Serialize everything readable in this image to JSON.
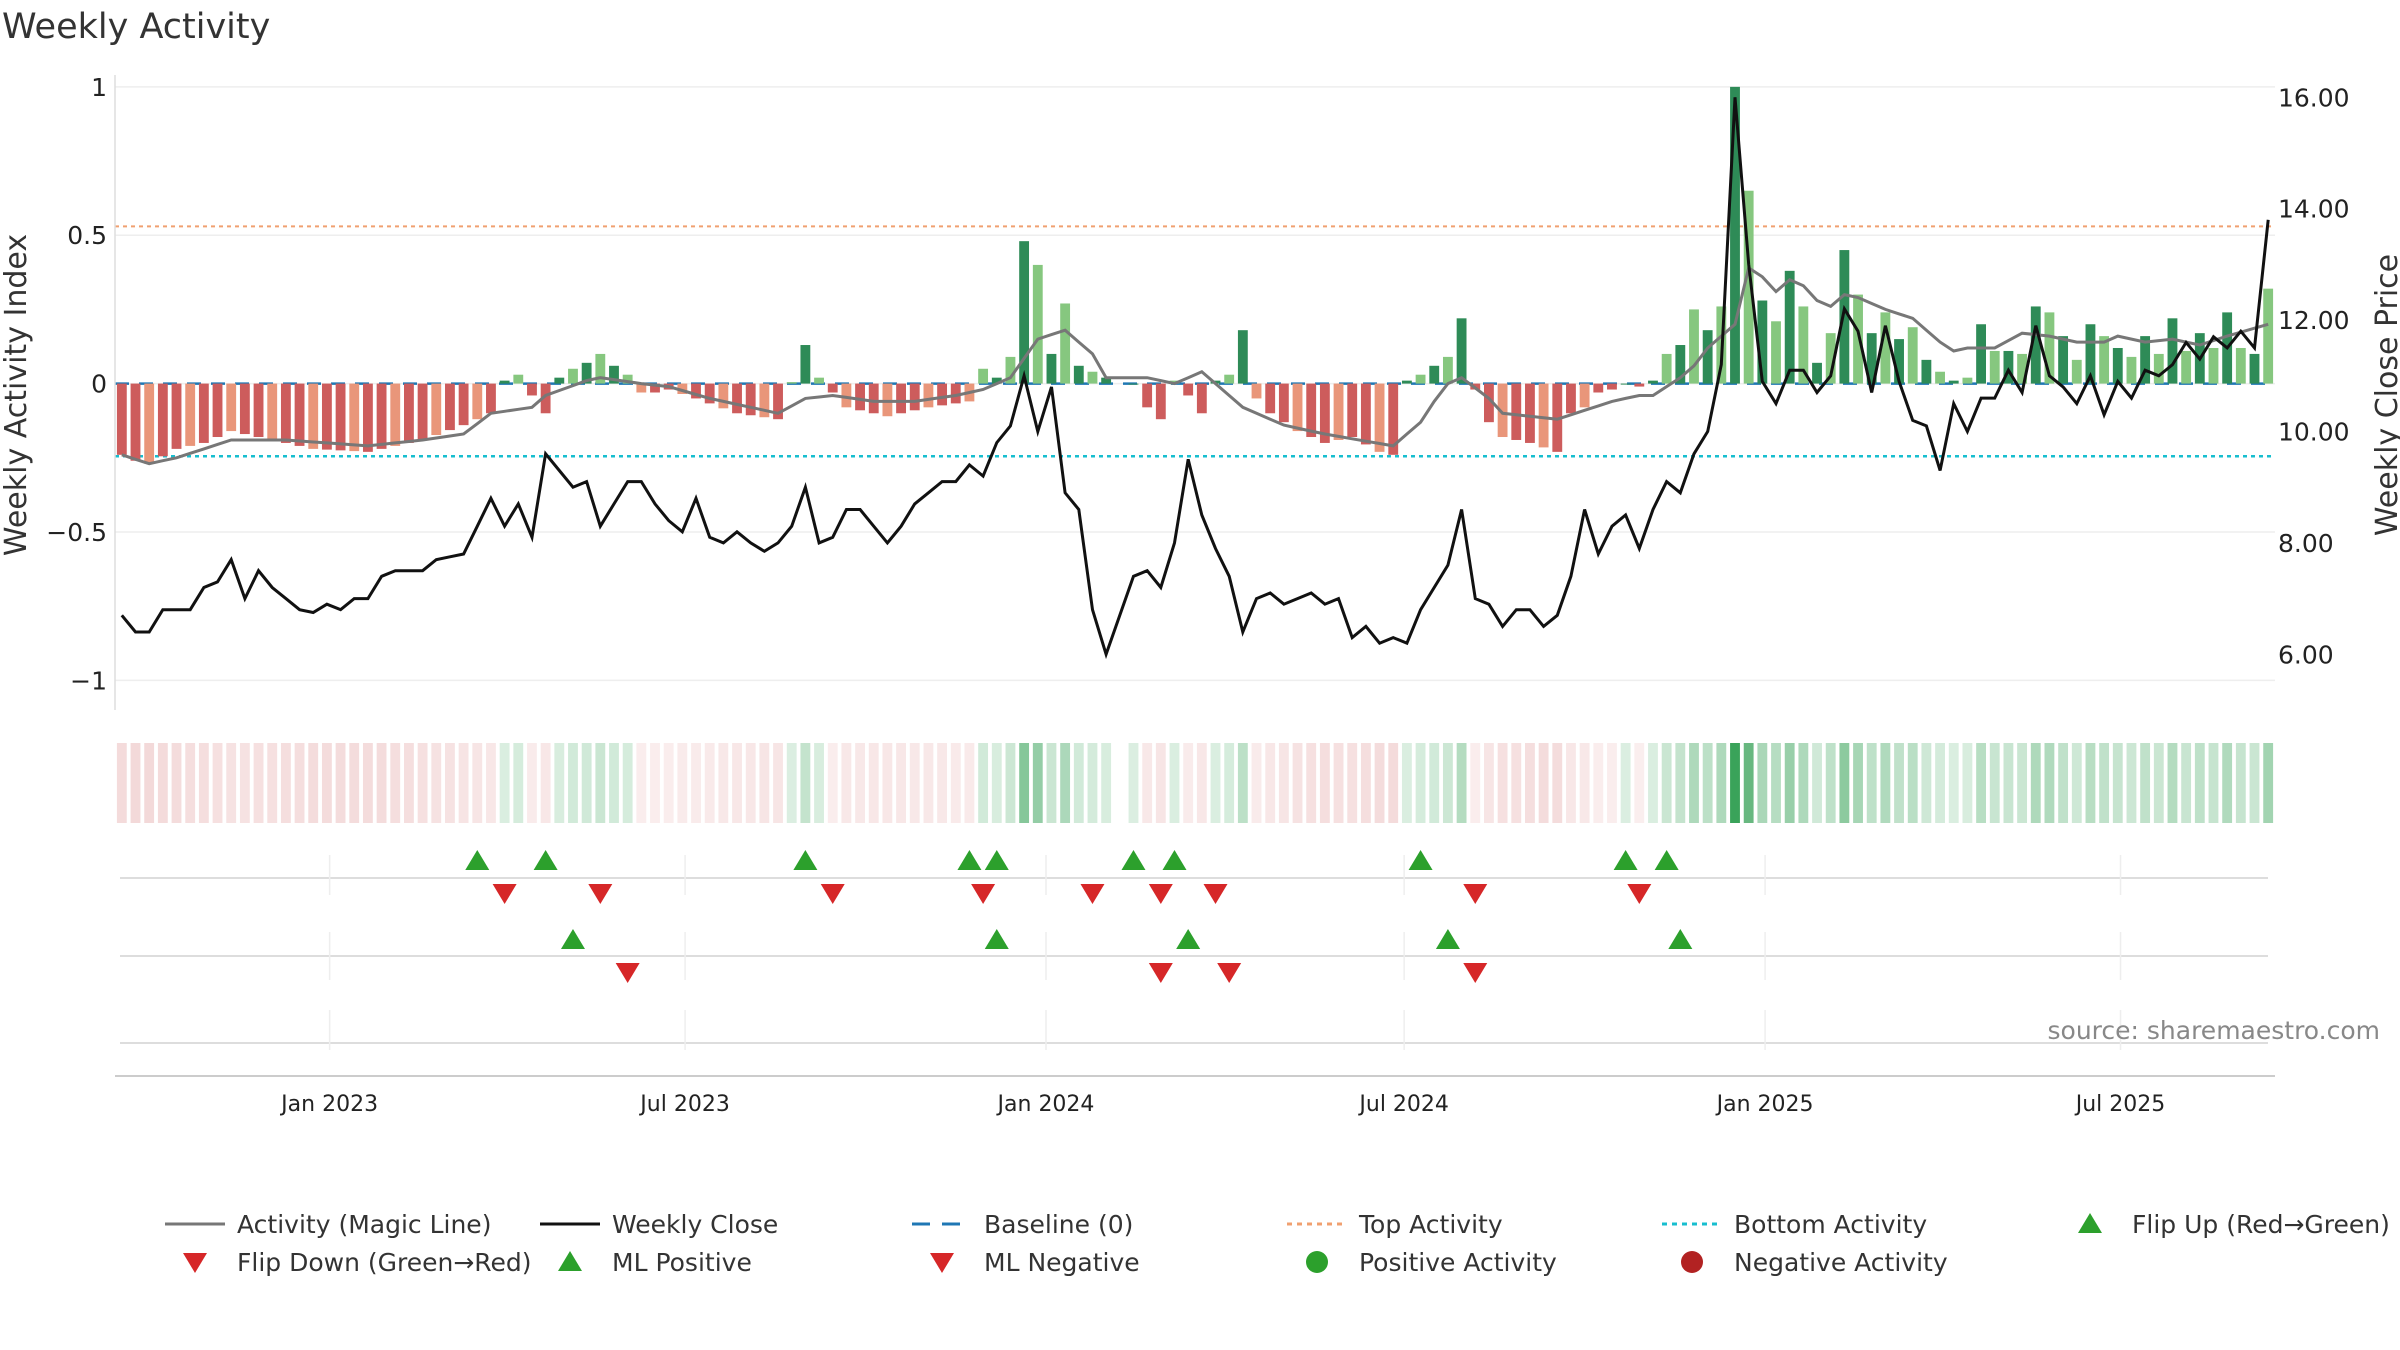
{
  "chart_data": {
    "type": "bar",
    "title": "Weekly Activity",
    "ylabel_left": "Weekly Activity Index",
    "ylabel_right": "Weekly Close Price",
    "source": "source: sharemaestro.com",
    "left_axis": {
      "ylim": [
        -1.1,
        1.04
      ],
      "ticks": [
        1,
        0.5,
        0,
        -0.5,
        -1
      ],
      "tick_labels": [
        "1",
        "0.5",
        "0",
        "−0.5",
        "−1"
      ]
    },
    "right_axis": {
      "ylim": [
        5.0,
        16.4
      ],
      "ticks": [
        16,
        14,
        12,
        10,
        8,
        6
      ],
      "tick_labels": [
        "16.00",
        "14.00",
        "12.00",
        "10.00",
        "8.00",
        "6.00"
      ]
    },
    "x_axis": {
      "start_week": 0,
      "n_weeks": 158,
      "ticks": [
        15.2,
        41.2,
        67.6,
        93.8,
        120.2,
        146.2
      ],
      "tick_labels": [
        "Jan 2023",
        "Jul 2023",
        "Jan 2024",
        "Jul 2024",
        "Jan 2025",
        "Jul 2025"
      ]
    },
    "reference_lines": {
      "baseline": 0,
      "top_activity": 0.53,
      "bottom_activity": -0.245
    },
    "activity_knots": [
      [
        0,
        -0.24
      ],
      [
        1,
        -0.26
      ],
      [
        2,
        -0.27
      ],
      [
        4,
        -0.22
      ],
      [
        6,
        -0.2
      ],
      [
        8,
        -0.16
      ],
      [
        10,
        -0.18
      ],
      [
        14,
        -0.22
      ],
      [
        18,
        -0.23
      ],
      [
        22,
        -0.19
      ],
      [
        25,
        -0.14
      ],
      [
        27,
        -0.1
      ],
      [
        28,
        0.01
      ],
      [
        29,
        0.03
      ],
      [
        30,
        -0.04
      ],
      [
        31,
        -0.1
      ],
      [
        32,
        0.02
      ],
      [
        33,
        0.05
      ],
      [
        34,
        0.07
      ],
      [
        35,
        0.1
      ],
      [
        36,
        0.06
      ],
      [
        37,
        0.03
      ],
      [
        38,
        -0.03
      ],
      [
        39,
        -0.03
      ],
      [
        40,
        -0.02
      ],
      [
        42,
        -0.05
      ],
      [
        45,
        -0.1
      ],
      [
        48,
        -0.12
      ],
      [
        50,
        0.13
      ],
      [
        51,
        0.02
      ],
      [
        53,
        -0.08
      ],
      [
        56,
        -0.11
      ],
      [
        59,
        -0.08
      ],
      [
        62,
        -0.06
      ],
      [
        63,
        0.05
      ],
      [
        64,
        0.02
      ],
      [
        65,
        0.09
      ],
      [
        66,
        0.48
      ],
      [
        67,
        0.4
      ],
      [
        68,
        0.1
      ],
      [
        69,
        0.27
      ],
      [
        70,
        0.06
      ],
      [
        72,
        0.02
      ],
      [
        74,
        0
      ],
      [
        75,
        -0.08
      ],
      [
        76,
        -0.12
      ],
      [
        77,
        0.01
      ],
      [
        78,
        -0.04
      ],
      [
        79,
        -0.1
      ],
      [
        80,
        0.01
      ],
      [
        81,
        0.03
      ],
      [
        82,
        0.18
      ],
      [
        83,
        -0.05
      ],
      [
        84,
        -0.1
      ],
      [
        86,
        -0.16
      ],
      [
        88,
        -0.2
      ],
      [
        90,
        -0.18
      ],
      [
        92,
        -0.23
      ],
      [
        93,
        -0.24
      ],
      [
        94,
        0.01
      ],
      [
        95,
        0.03
      ],
      [
        96,
        0.06
      ],
      [
        97,
        0.09
      ],
      [
        98,
        0.22
      ],
      [
        99,
        -0.02
      ],
      [
        100,
        -0.13
      ],
      [
        101,
        -0.18
      ],
      [
        103,
        -0.2
      ],
      [
        105,
        -0.23
      ],
      [
        106,
        -0.1
      ],
      [
        107,
        -0.08
      ],
      [
        108,
        -0.03
      ],
      [
        109,
        -0.02
      ],
      [
        110,
        0
      ],
      [
        111,
        -0.01
      ],
      [
        112,
        0.01
      ],
      [
        113,
        0.1
      ],
      [
        114,
        0.13
      ],
      [
        115,
        0.25
      ],
      [
        116,
        0.18
      ],
      [
        117,
        0.26
      ],
      [
        118,
        1
      ],
      [
        119,
        0.65
      ],
      [
        120,
        0.28
      ],
      [
        121,
        0.21
      ],
      [
        122,
        0.38
      ],
      [
        123,
        0.26
      ],
      [
        124,
        0.07
      ],
      [
        125,
        0.17
      ],
      [
        126,
        0.45
      ],
      [
        127,
        0.3
      ],
      [
        128,
        0.17
      ],
      [
        129,
        0.24
      ],
      [
        130,
        0.15
      ],
      [
        131,
        0.19
      ],
      [
        132,
        0.08
      ],
      [
        133,
        0.04
      ],
      [
        134,
        0.01
      ],
      [
        135,
        0.02
      ],
      [
        136,
        0.2
      ],
      [
        137,
        0.11
      ],
      [
        138,
        0.11
      ],
      [
        139,
        0.1
      ],
      [
        140,
        0.26
      ],
      [
        141,
        0.24
      ],
      [
        142,
        0.16
      ],
      [
        143,
        0.08
      ],
      [
        144,
        0.2
      ],
      [
        145,
        0.16
      ],
      [
        146,
        0.12
      ],
      [
        147,
        0.09
      ],
      [
        148,
        0.16
      ],
      [
        149,
        0.1
      ],
      [
        150,
        0.22
      ],
      [
        151,
        0.11
      ],
      [
        152,
        0.17
      ],
      [
        153,
        0.12
      ],
      [
        154,
        0.24
      ],
      [
        155,
        0.12
      ],
      [
        156,
        0.1
      ],
      [
        157,
        0.32
      ]
    ],
    "magic_line_knots": [
      [
        0,
        -0.24
      ],
      [
        2,
        -0.27
      ],
      [
        4,
        -0.25
      ],
      [
        6,
        -0.22
      ],
      [
        8,
        -0.19
      ],
      [
        12,
        -0.19
      ],
      [
        18,
        -0.21
      ],
      [
        22,
        -0.19
      ],
      [
        25,
        -0.17
      ],
      [
        27,
        -0.1
      ],
      [
        30,
        -0.08
      ],
      [
        31,
        -0.04
      ],
      [
        34,
        0.01
      ],
      [
        35,
        0.02
      ],
      [
        38,
        0.0
      ],
      [
        40,
        -0.01
      ],
      [
        43,
        -0.05
      ],
      [
        48,
        -0.1
      ],
      [
        50,
        -0.05
      ],
      [
        52,
        -0.04
      ],
      [
        55,
        -0.06
      ],
      [
        58,
        -0.06
      ],
      [
        61,
        -0.04
      ],
      [
        63,
        -0.02
      ],
      [
        65,
        0.02
      ],
      [
        67,
        0.15
      ],
      [
        69,
        0.18
      ],
      [
        71,
        0.1
      ],
      [
        72,
        0.02
      ],
      [
        75,
        0.02
      ],
      [
        77,
        0.0
      ],
      [
        79,
        0.04
      ],
      [
        82,
        -0.08
      ],
      [
        85,
        -0.14
      ],
      [
        88,
        -0.17
      ],
      [
        93,
        -0.21
      ],
      [
        95,
        -0.13
      ],
      [
        96,
        -0.06
      ],
      [
        97,
        0.0
      ],
      [
        98,
        0.02
      ],
      [
        100,
        -0.05
      ],
      [
        101,
        -0.1
      ],
      [
        103,
        -0.11
      ],
      [
        105,
        -0.12
      ],
      [
        107,
        -0.09
      ],
      [
        109,
        -0.06
      ],
      [
        111,
        -0.04
      ],
      [
        112,
        -0.04
      ],
      [
        114,
        0.02
      ],
      [
        115,
        0.06
      ],
      [
        116,
        0.12
      ],
      [
        118,
        0.2
      ],
      [
        119,
        0.39
      ],
      [
        120,
        0.36
      ],
      [
        121,
        0.31
      ],
      [
        122,
        0.35
      ],
      [
        123,
        0.33
      ],
      [
        124,
        0.28
      ],
      [
        125,
        0.26
      ],
      [
        126,
        0.3
      ],
      [
        127,
        0.29
      ],
      [
        128,
        0.27
      ],
      [
        129,
        0.25
      ],
      [
        131,
        0.22
      ],
      [
        133,
        0.14
      ],
      [
        134,
        0.11
      ],
      [
        135,
        0.12
      ],
      [
        137,
        0.12
      ],
      [
        139,
        0.17
      ],
      [
        141,
        0.16
      ],
      [
        143,
        0.14
      ],
      [
        145,
        0.14
      ],
      [
        146,
        0.16
      ],
      [
        148,
        0.14
      ],
      [
        150,
        0.15
      ],
      [
        152,
        0.13
      ],
      [
        154,
        0.16
      ],
      [
        157,
        0.2
      ]
    ],
    "weekly_close_knots": [
      [
        0,
        6.7
      ],
      [
        1,
        6.4
      ],
      [
        2,
        6.4
      ],
      [
        3,
        6.8
      ],
      [
        5,
        6.8
      ],
      [
        6,
        7.2
      ],
      [
        7,
        7.3
      ],
      [
        8,
        7.7
      ],
      [
        9,
        7.0
      ],
      [
        10,
        7.5
      ],
      [
        11,
        7.2
      ],
      [
        12,
        7.0
      ],
      [
        13,
        6.8
      ],
      [
        14,
        6.75
      ],
      [
        15,
        6.9
      ],
      [
        16,
        6.8
      ],
      [
        17,
        7.0
      ],
      [
        18,
        7.0
      ],
      [
        19,
        7.4
      ],
      [
        20,
        7.5
      ],
      [
        22,
        7.5
      ],
      [
        23,
        7.7
      ],
      [
        25,
        7.8
      ],
      [
        26,
        8.3
      ],
      [
        27,
        8.8
      ],
      [
        28,
        8.3
      ],
      [
        29,
        8.7
      ],
      [
        30,
        8.1
      ],
      [
        31,
        9.6
      ],
      [
        32,
        9.3
      ],
      [
        33,
        9.0
      ],
      [
        34,
        9.1
      ],
      [
        35,
        8.3
      ],
      [
        36,
        8.7
      ],
      [
        37,
        9.1
      ],
      [
        38,
        9.1
      ],
      [
        39,
        8.7
      ],
      [
        40,
        8.4
      ],
      [
        41,
        8.2
      ],
      [
        42,
        8.8
      ],
      [
        43,
        8.1
      ],
      [
        44,
        8.0
      ],
      [
        45,
        8.2
      ],
      [
        46,
        8.0
      ],
      [
        47,
        7.85
      ],
      [
        48,
        8.0
      ],
      [
        49,
        8.3
      ],
      [
        50,
        9.0
      ],
      [
        51,
        8.0
      ],
      [
        52,
        8.1
      ],
      [
        53,
        8.6
      ],
      [
        54,
        8.6
      ],
      [
        55,
        8.3
      ],
      [
        56,
        8.0
      ],
      [
        57,
        8.3
      ],
      [
        58,
        8.7
      ],
      [
        59,
        8.9
      ],
      [
        60,
        9.1
      ],
      [
        61,
        9.1
      ],
      [
        62,
        9.4
      ],
      [
        63,
        9.2
      ],
      [
        64,
        9.8
      ],
      [
        65,
        10.1
      ],
      [
        66,
        11.0
      ],
      [
        67,
        10.0
      ],
      [
        68,
        10.8
      ],
      [
        69,
        8.9
      ],
      [
        70,
        8.6
      ],
      [
        71,
        6.8
      ],
      [
        72,
        6.0
      ],
      [
        73,
        6.7
      ],
      [
        74,
        7.4
      ],
      [
        75,
        7.5
      ],
      [
        76,
        7.2
      ],
      [
        77,
        8.0
      ],
      [
        78,
        9.5
      ],
      [
        79,
        8.5
      ],
      [
        80,
        7.9
      ],
      [
        81,
        7.4
      ],
      [
        82,
        6.4
      ],
      [
        83,
        7.0
      ],
      [
        84,
        7.1
      ],
      [
        85,
        6.9
      ],
      [
        86,
        7.0
      ],
      [
        87,
        7.1
      ],
      [
        88,
        6.9
      ],
      [
        89,
        7.0
      ],
      [
        90,
        6.3
      ],
      [
        91,
        6.5
      ],
      [
        92,
        6.2
      ],
      [
        93,
        6.3
      ],
      [
        94,
        6.2
      ],
      [
        95,
        6.8
      ],
      [
        96,
        7.2
      ],
      [
        97,
        7.6
      ],
      [
        98,
        8.6
      ],
      [
        99,
        7.0
      ],
      [
        100,
        6.9
      ],
      [
        101,
        6.5
      ],
      [
        102,
        6.8
      ],
      [
        103,
        6.8
      ],
      [
        104,
        6.5
      ],
      [
        105,
        6.7
      ],
      [
        106,
        7.4
      ],
      [
        107,
        8.6
      ],
      [
        108,
        7.8
      ],
      [
        109,
        8.3
      ],
      [
        110,
        8.5
      ],
      [
        111,
        7.9
      ],
      [
        112,
        8.6
      ],
      [
        113,
        9.1
      ],
      [
        114,
        8.9
      ],
      [
        115,
        9.6
      ],
      [
        116,
        10.0
      ],
      [
        117,
        11.2
      ],
      [
        118,
        16.0
      ],
      [
        119,
        13.0
      ],
      [
        120,
        10.9
      ],
      [
        121,
        10.5
      ],
      [
        122,
        11.1
      ],
      [
        123,
        11.1
      ],
      [
        124,
        10.7
      ],
      [
        125,
        11.0
      ],
      [
        126,
        12.2
      ],
      [
        127,
        11.8
      ],
      [
        128,
        10.7
      ],
      [
        129,
        11.9
      ],
      [
        130,
        10.9
      ],
      [
        131,
        10.2
      ],
      [
        132,
        10.1
      ],
      [
        133,
        9.3
      ],
      [
        134,
        10.5
      ],
      [
        135,
        10.0
      ],
      [
        136,
        10.6
      ],
      [
        137,
        10.6
      ],
      [
        138,
        11.1
      ],
      [
        139,
        10.7
      ],
      [
        140,
        11.9
      ],
      [
        141,
        11.0
      ],
      [
        142,
        10.8
      ],
      [
        143,
        10.5
      ],
      [
        144,
        11.0
      ],
      [
        145,
        10.3
      ],
      [
        146,
        10.9
      ],
      [
        147,
        10.6
      ],
      [
        148,
        11.1
      ],
      [
        149,
        11.0
      ],
      [
        150,
        11.2
      ],
      [
        151,
        11.6
      ],
      [
        152,
        11.3
      ],
      [
        153,
        11.7
      ],
      [
        154,
        11.5
      ],
      [
        155,
        11.8
      ],
      [
        156,
        11.5
      ],
      [
        157,
        13.8
      ]
    ],
    "flip_up_weeks": [
      26,
      31,
      50,
      62,
      64,
      74,
      77,
      95,
      110,
      113
    ],
    "flip_down_weeks": [
      28,
      35,
      52,
      63,
      71,
      76,
      80,
      99,
      111
    ],
    "ml_positive_weeks": [
      33,
      64,
      78,
      97,
      114
    ],
    "ml_negative_weeks": [
      37,
      76,
      81,
      99
    ],
    "gap_weeks": [
      73
    ]
  },
  "legend": [
    {
      "label": "Activity (Magic Line)",
      "kind": "line-solid",
      "color": "#777777"
    },
    {
      "label": "Weekly Close",
      "kind": "line-solid",
      "color": "#111111"
    },
    {
      "label": "Baseline (0)",
      "kind": "line-dash",
      "color": "#1f77b4"
    },
    {
      "label": "Top Activity",
      "kind": "line-dot",
      "color": "#f0a070"
    },
    {
      "label": "Bottom Activity",
      "kind": "line-dot",
      "color": "#17becf"
    },
    {
      "label": "Flip Up (Red→Green)",
      "kind": "tri-up",
      "color": "#2ca02c"
    },
    {
      "label": "Flip Down (Green→Red)",
      "kind": "tri-down",
      "color": "#d62728"
    },
    {
      "label": "ML Positive",
      "kind": "tri-up",
      "color": "#2ca02c"
    },
    {
      "label": "ML Negative",
      "kind": "tri-down",
      "color": "#d62728"
    },
    {
      "label": "Positive Activity",
      "kind": "dot",
      "color": "#2ca02c"
    },
    {
      "label": "Negative Activity",
      "kind": "dot",
      "color": "#b22222"
    }
  ],
  "colors": {
    "pos_dark": "#2e8b57",
    "pos_light": "#86c77f",
    "neg_dark": "#cd5c5c",
    "neg_light": "#e9967a",
    "heat_pos": "#3aa35a",
    "heat_neg": "#cd5c5c",
    "magic": "#777777",
    "close": "#111111",
    "baseline": "#1f77b4",
    "top": "#f0a070",
    "bottom": "#17becf",
    "up": "#2ca02c",
    "down": "#d62728"
  }
}
